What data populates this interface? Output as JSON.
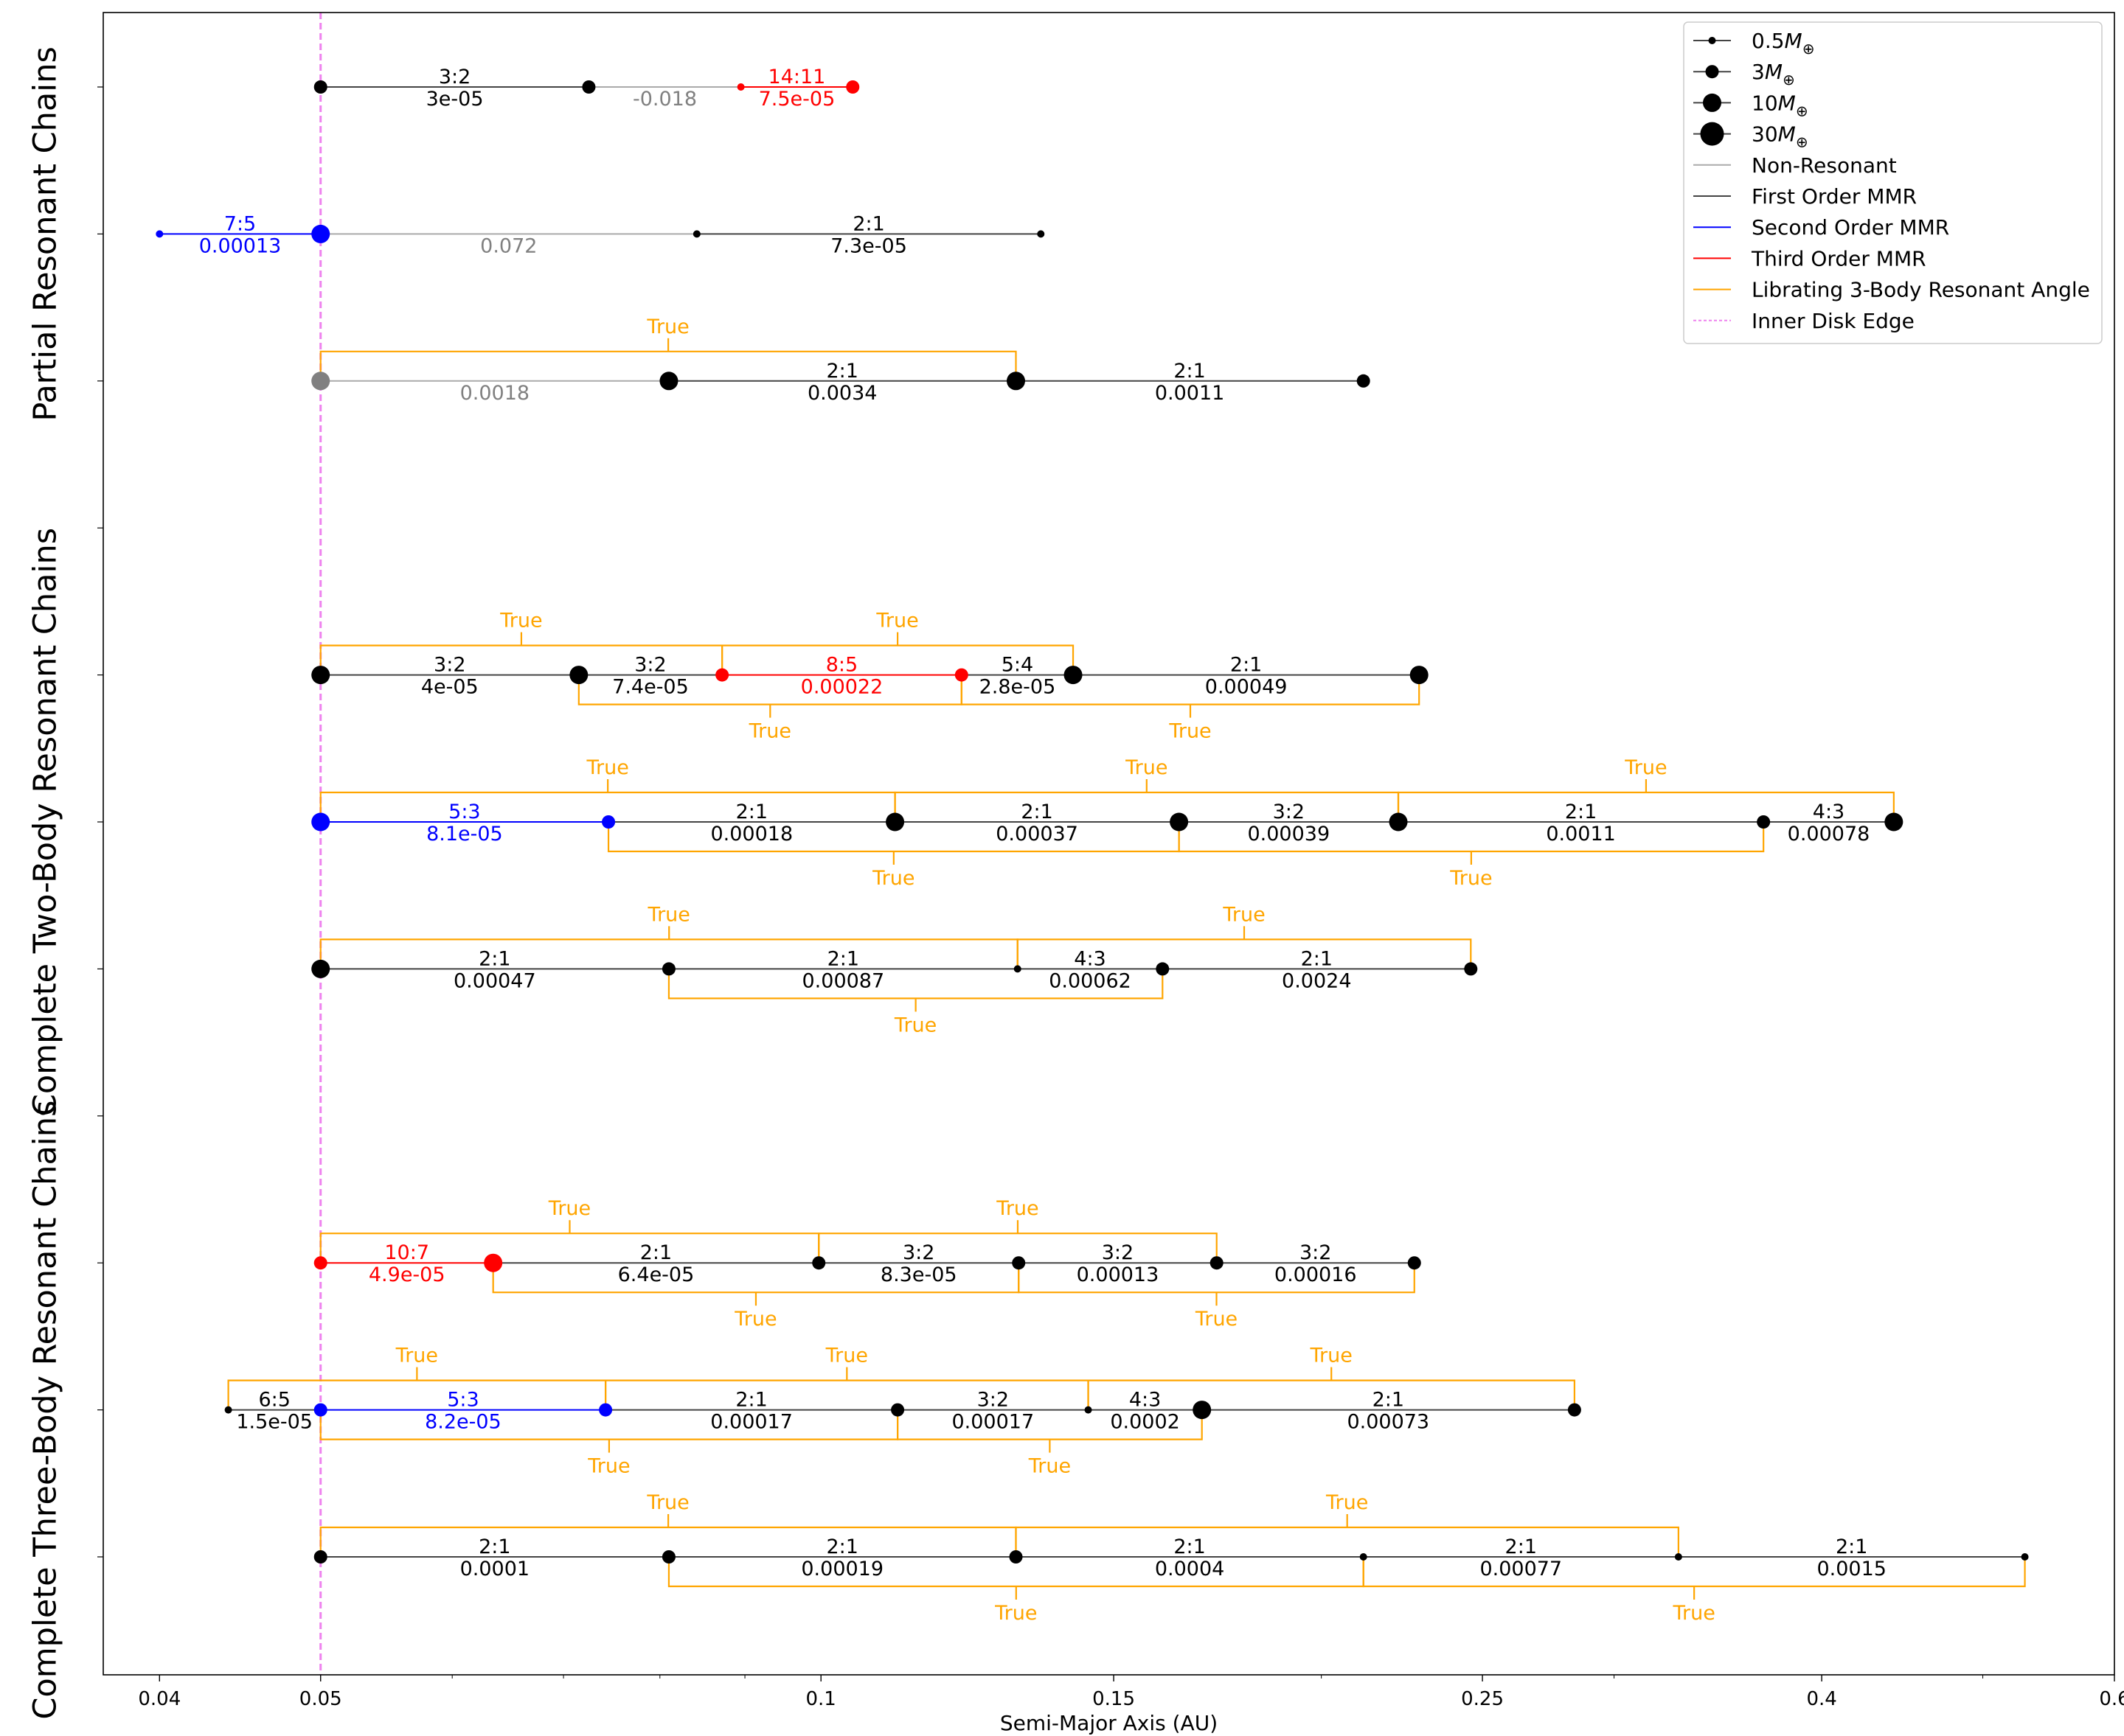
{
  "chart_data": {
    "type": "line",
    "xlabel": "Semi-Major Axis (AU)",
    "xscale": "log",
    "xlim": [
      0.037,
      0.6
    ],
    "xticks": [
      {
        "value": 0.04,
        "label": "0.04"
      },
      {
        "value": 0.05,
        "label": "0.05"
      },
      {
        "value": 0.1,
        "label": "0.1"
      },
      {
        "value": 0.15,
        "label": "0.15"
      },
      {
        "value": 0.25,
        "label": "0.25"
      },
      {
        "value": 0.4,
        "label": "0.4"
      },
      {
        "value": 0.6,
        "label": "0.6"
      }
    ],
    "group_labels": [
      {
        "text": "Partial Resonant Chains",
        "rows": [
          0,
          2
        ]
      },
      {
        "text": "Complete Two-Body Resonant Chains",
        "rows": [
          4,
          6
        ]
      },
      {
        "text": "Complete Three-Body Resonant Chains",
        "rows": [
          8,
          10
        ]
      }
    ],
    "inner_disk_edge": 0.05,
    "colors": {
      "first": "#000000",
      "second": "#0000ff",
      "third": "#ff0000",
      "none": "#808080",
      "three_body": "#ffa500",
      "disk_edge": "#ee82ee"
    },
    "legend": {
      "placement": "top-right",
      "entries": [
        {
          "kind": "marker",
          "mass": 0.5,
          "label": "0.5",
          "sym": "M",
          "sub": "⊕"
        },
        {
          "kind": "marker",
          "mass": 3,
          "label": "3",
          "sym": "M",
          "sub": "⊕"
        },
        {
          "kind": "marker",
          "mass": 10,
          "label": "10",
          "sym": "M",
          "sub": "⊕"
        },
        {
          "kind": "marker",
          "mass": 30,
          "label": "30",
          "sym": "M",
          "sub": "⊕"
        },
        {
          "kind": "line",
          "color": "#aaaaaa",
          "label": "Non-Resonant"
        },
        {
          "kind": "line",
          "color": "#444444",
          "label": "First Order MMR"
        },
        {
          "kind": "line",
          "color": "#0000ff",
          "label": "Second Order MMR"
        },
        {
          "kind": "line",
          "color": "#ff0000",
          "label": "Third Order MMR"
        },
        {
          "kind": "line",
          "color": "#ffa500",
          "label": "Librating 3-Body Resonant Angle"
        },
        {
          "kind": "dashed",
          "color": "#ee82ee",
          "label": "Inner Disk Edge"
        }
      ]
    },
    "systems": [
      {
        "row": 0,
        "planets": [
          [
            0.05,
            3,
            "first"
          ],
          [
            0.0725,
            3,
            "first"
          ],
          [
            0.0895,
            0.5,
            "third"
          ],
          [
            0.1045,
            3,
            "third"
          ]
        ],
        "pairs": [
          {
            "res": "3:2",
            "val": "3e-05",
            "order": "first"
          },
          {
            "res": "",
            "val": "-0.018",
            "order": "none"
          },
          {
            "res": "14:11",
            "val": "7.5e-05",
            "order": "third"
          }
        ],
        "three_body": []
      },
      {
        "row": 1,
        "planets": [
          [
            0.04,
            0.5,
            "second"
          ],
          [
            0.05,
            10,
            "second"
          ],
          [
            0.0842,
            0.5,
            "first"
          ],
          [
            0.1356,
            0.5,
            "first"
          ]
        ],
        "pairs": [
          {
            "res": "7:5",
            "val": "0.00013",
            "order": "second"
          },
          {
            "res": "",
            "val": "0.072",
            "order": "none"
          },
          {
            "res": "2:1",
            "val": "7.3e-05",
            "order": "first"
          }
        ],
        "three_body": []
      },
      {
        "row": 2,
        "planets": [
          [
            0.05,
            10,
            "none"
          ],
          [
            0.081,
            10,
            "first"
          ],
          [
            0.131,
            10,
            "first"
          ],
          [
            0.212,
            3,
            "first"
          ]
        ],
        "pairs": [
          {
            "res": "",
            "val": "0.0018",
            "order": "none"
          },
          {
            "res": "2:1",
            "val": "0.0034",
            "order": "first"
          },
          {
            "res": "2:1",
            "val": "0.0011",
            "order": "first"
          }
        ],
        "three_body": [
          {
            "i": 0,
            "above": true,
            "text": "True"
          }
        ]
      },
      {
        "row": 4,
        "planets": [
          [
            0.05,
            10,
            "first"
          ],
          [
            0.0715,
            10,
            "first"
          ],
          [
            0.0872,
            3,
            "third"
          ],
          [
            0.1215,
            3,
            "third"
          ],
          [
            0.1418,
            10,
            "first"
          ],
          [
            0.229,
            10,
            "first"
          ]
        ],
        "pairs": [
          {
            "res": "3:2",
            "val": "4e-05",
            "order": "first"
          },
          {
            "res": "3:2",
            "val": "7.4e-05",
            "order": "first"
          },
          {
            "res": "8:5",
            "val": "0.00022",
            "order": "third"
          },
          {
            "res": "5:4",
            "val": "2.8e-05",
            "order": "first"
          },
          {
            "res": "2:1",
            "val": "0.00049",
            "order": "first"
          }
        ],
        "three_body": [
          {
            "i": 0,
            "above": true,
            "text": "True"
          },
          {
            "i": 1,
            "above": false,
            "text": "True"
          },
          {
            "i": 2,
            "above": true,
            "text": "True"
          },
          {
            "i": 3,
            "above": false,
            "text": "True"
          }
        ]
      },
      {
        "row": 5,
        "planets": [
          [
            0.05,
            10,
            "second"
          ],
          [
            0.0745,
            3,
            "second"
          ],
          [
            0.1108,
            10,
            "first"
          ],
          [
            0.1642,
            10,
            "first"
          ],
          [
            0.2225,
            10,
            "first"
          ],
          [
            0.369,
            3,
            "first"
          ],
          [
            0.442,
            10,
            "first"
          ]
        ],
        "pairs": [
          {
            "res": "5:3",
            "val": "8.1e-05",
            "order": "second"
          },
          {
            "res": "2:1",
            "val": "0.00018",
            "order": "first"
          },
          {
            "res": "2:1",
            "val": "0.00037",
            "order": "first"
          },
          {
            "res": "3:2",
            "val": "0.00039",
            "order": "first"
          },
          {
            "res": "2:1",
            "val": "0.0011",
            "order": "first"
          },
          {
            "res": "4:3",
            "val": "0.00078",
            "order": "first"
          }
        ],
        "three_body": [
          {
            "i": 0,
            "above": true,
            "text": "True"
          },
          {
            "i": 1,
            "above": false,
            "text": "True"
          },
          {
            "i": 2,
            "above": true,
            "text": "True"
          },
          {
            "i": 3,
            "above": false,
            "text": "True"
          },
          {
            "i": 4,
            "above": true,
            "text": "True"
          }
        ]
      },
      {
        "row": 6,
        "planets": [
          [
            0.05,
            10,
            "first"
          ],
          [
            0.081,
            3,
            "first"
          ],
          [
            0.1313,
            0.5,
            "first"
          ],
          [
            0.1605,
            3,
            "first"
          ],
          [
            0.246,
            3,
            "first"
          ]
        ],
        "pairs": [
          {
            "res": "2:1",
            "val": "0.00047",
            "order": "first"
          },
          {
            "res": "2:1",
            "val": "0.00087",
            "order": "first"
          },
          {
            "res": "4:3",
            "val": "0.00062",
            "order": "first"
          },
          {
            "res": "2:1",
            "val": "0.0024",
            "order": "first"
          }
        ],
        "three_body": [
          {
            "i": 0,
            "above": true,
            "text": "True"
          },
          {
            "i": 1,
            "above": false,
            "text": "True"
          },
          {
            "i": 2,
            "above": true,
            "text": "True"
          }
        ]
      },
      {
        "row": 8,
        "planets": [
          [
            0.05,
            3,
            "third"
          ],
          [
            0.0635,
            10,
            "third"
          ],
          [
            0.0997,
            3,
            "first"
          ],
          [
            0.1315,
            3,
            "first"
          ],
          [
            0.173,
            3,
            "first"
          ],
          [
            0.2275,
            3,
            "first"
          ]
        ],
        "pairs": [
          {
            "res": "10:7",
            "val": "4.9e-05",
            "order": "third"
          },
          {
            "res": "2:1",
            "val": "6.4e-05",
            "order": "first"
          },
          {
            "res": "3:2",
            "val": "8.3e-05",
            "order": "first"
          },
          {
            "res": "3:2",
            "val": "0.00013",
            "order": "first"
          },
          {
            "res": "3:2",
            "val": "0.00016",
            "order": "first"
          }
        ],
        "three_body": [
          {
            "i": 0,
            "above": true,
            "text": "True"
          },
          {
            "i": 1,
            "above": false,
            "text": "True"
          },
          {
            "i": 2,
            "above": true,
            "text": "True"
          },
          {
            "i": 3,
            "above": false,
            "text": "True"
          }
        ]
      },
      {
        "row": 9,
        "planets": [
          [
            0.044,
            0.5,
            "first"
          ],
          [
            0.05,
            3,
            "second"
          ],
          [
            0.0742,
            3,
            "second"
          ],
          [
            0.1112,
            3,
            "first"
          ],
          [
            0.1448,
            0.5,
            "first"
          ],
          [
            0.1695,
            10,
            "first"
          ],
          [
            0.284,
            3,
            "first"
          ]
        ],
        "pairs": [
          {
            "res": "6:5",
            "val": "1.5e-05",
            "order": "first"
          },
          {
            "res": "5:3",
            "val": "8.2e-05",
            "order": "second"
          },
          {
            "res": "2:1",
            "val": "0.00017",
            "order": "first"
          },
          {
            "res": "3:2",
            "val": "0.00017",
            "order": "first"
          },
          {
            "res": "4:3",
            "val": "0.0002",
            "order": "first"
          },
          {
            "res": "2:1",
            "val": "0.00073",
            "order": "first"
          }
        ],
        "three_body": [
          {
            "i": 0,
            "above": true,
            "text": "True"
          },
          {
            "i": 1,
            "above": false,
            "text": "True"
          },
          {
            "i": 2,
            "above": true,
            "text": "True"
          },
          {
            "i": 3,
            "above": false,
            "text": "True"
          },
          {
            "i": 4,
            "above": true,
            "text": "True"
          }
        ]
      },
      {
        "row": 10,
        "planets": [
          [
            0.05,
            3,
            "first"
          ],
          [
            0.081,
            3,
            "first"
          ],
          [
            0.131,
            3,
            "first"
          ],
          [
            0.212,
            0.5,
            "first"
          ],
          [
            0.328,
            0.5,
            "first"
          ],
          [
            0.53,
            0.5,
            "first"
          ]
        ],
        "pairs": [
          {
            "res": "2:1",
            "val": "0.0001",
            "order": "first"
          },
          {
            "res": "2:1",
            "val": "0.00019",
            "order": "first"
          },
          {
            "res": "2:1",
            "val": "0.0004",
            "order": "first"
          },
          {
            "res": "2:1",
            "val": "0.00077",
            "order": "first"
          },
          {
            "res": "2:1",
            "val": "0.0015",
            "order": "first"
          }
        ],
        "three_body": [
          {
            "i": 0,
            "above": true,
            "text": "True"
          },
          {
            "i": 1,
            "above": false,
            "text": "True"
          },
          {
            "i": 2,
            "above": true,
            "text": "True"
          },
          {
            "i": 3,
            "above": false,
            "text": "True"
          }
        ]
      }
    ]
  }
}
